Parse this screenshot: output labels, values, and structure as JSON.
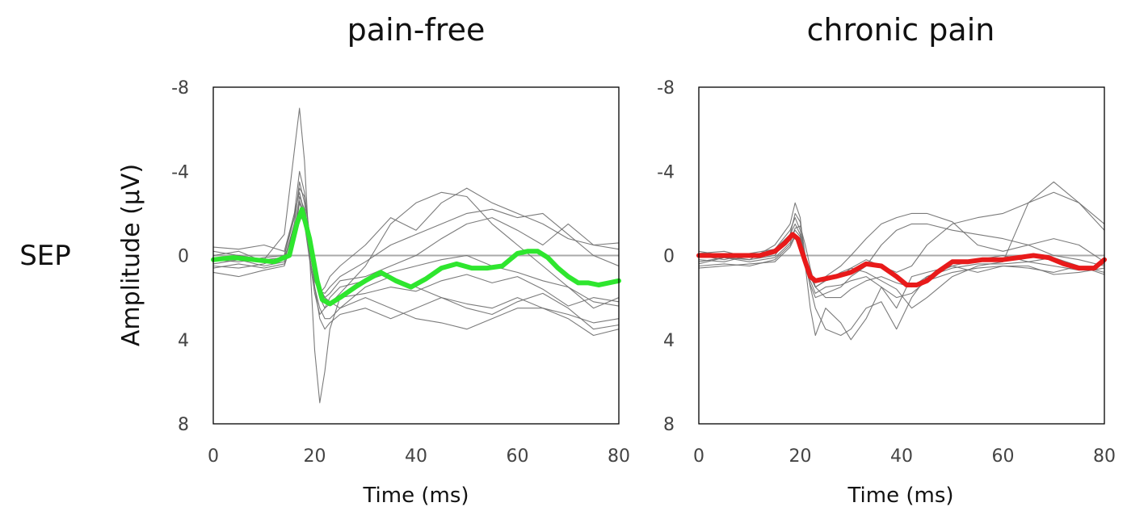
{
  "row_label": "SEP",
  "ylabel": "Amplitude (μV)",
  "chart_data": [
    {
      "type": "line",
      "title": "pain-free",
      "xlabel": "Time (ms)",
      "ylabel": "Amplitude (μV)",
      "xlim": [
        0,
        80
      ],
      "ylim": [
        -8,
        8
      ],
      "y_inverted": true,
      "xticks": [
        0,
        20,
        40,
        60,
        80
      ],
      "yticks": [
        -8,
        -4,
        0,
        4,
        8
      ],
      "zero_line": true,
      "mean_color": "#2ee62e",
      "individual_color": "#6d6d6d",
      "mean": {
        "x": [
          0,
          4,
          8,
          12,
          15,
          16.5,
          17.5,
          19,
          20.5,
          21.5,
          23,
          25,
          28,
          30,
          33,
          36,
          39,
          42,
          45,
          48,
          51,
          54,
          57,
          60,
          62,
          64,
          66,
          68,
          70,
          72,
          74,
          76,
          78,
          80
        ],
        "y": [
          0.2,
          0.1,
          0.2,
          0.3,
          0.0,
          -1.5,
          -2.2,
          -0.8,
          1.2,
          2.1,
          2.3,
          2.0,
          1.5,
          1.2,
          0.8,
          1.2,
          1.5,
          1.1,
          0.6,
          0.4,
          0.6,
          0.6,
          0.5,
          -0.1,
          -0.2,
          -0.2,
          0.1,
          0.6,
          1.0,
          1.3,
          1.3,
          1.4,
          1.3,
          1.2
        ]
      },
      "individuals": [
        {
          "x": [
            0,
            5,
            10,
            14,
            16,
            17,
            18,
            19,
            20,
            21,
            22,
            23,
            25,
            30,
            35,
            40,
            45,
            50,
            55,
            60,
            65,
            70,
            75,
            80
          ],
          "y": [
            0.3,
            0.0,
            0.2,
            -1.0,
            -5.0,
            -7.0,
            -4.5,
            0.0,
            4.5,
            7.0,
            5.5,
            3.5,
            2.0,
            1.8,
            1.5,
            1.7,
            1.2,
            0.9,
            1.3,
            1.0,
            1.6,
            2.4,
            2.0,
            2.2
          ]
        },
        {
          "x": [
            0,
            5,
            10,
            14,
            16,
            17,
            18,
            19,
            20,
            21,
            22,
            23,
            25,
            30,
            35,
            40,
            45,
            50,
            55,
            60,
            65,
            70,
            75,
            80
          ],
          "y": [
            0.5,
            0.6,
            0.4,
            0.0,
            -2.0,
            -4.0,
            -3.0,
            -1.0,
            1.5,
            3.0,
            3.5,
            3.2,
            2.8,
            2.5,
            3.0,
            2.5,
            2.0,
            2.3,
            2.5,
            2.0,
            2.5,
            3.0,
            3.8,
            3.5
          ]
        },
        {
          "x": [
            0,
            5,
            10,
            14,
            16,
            17,
            18,
            19,
            20,
            21,
            22,
            23,
            25,
            30,
            35,
            40,
            45,
            50,
            55,
            60,
            65,
            70,
            75,
            80
          ],
          "y": [
            0.0,
            -0.2,
            0.3,
            0.2,
            -1.5,
            -3.5,
            -2.5,
            -0.5,
            1.0,
            2.0,
            2.5,
            2.3,
            1.8,
            0.5,
            -1.5,
            -2.5,
            -3.0,
            -2.8,
            -1.5,
            -0.5,
            0.5,
            1.5,
            2.5,
            2.0
          ]
        },
        {
          "x": [
            0,
            5,
            10,
            14,
            16,
            17,
            18,
            19,
            20,
            21,
            22,
            23,
            25,
            30,
            35,
            40,
            45,
            50,
            55,
            60,
            65,
            70,
            75,
            80
          ],
          "y": [
            -0.4,
            -0.3,
            -0.5,
            -0.2,
            -2.0,
            -3.0,
            -2.0,
            -0.3,
            1.2,
            1.8,
            1.5,
            1.0,
            0.5,
            -0.5,
            -1.8,
            -1.2,
            -2.5,
            -3.2,
            -2.5,
            -2.0,
            -1.5,
            -0.8,
            -0.5,
            -0.6
          ]
        },
        {
          "x": [
            0,
            5,
            10,
            14,
            16,
            17,
            18,
            19,
            20,
            21,
            22,
            23,
            25,
            30,
            35,
            40,
            45,
            50,
            55,
            60,
            65,
            70,
            75,
            80
          ],
          "y": [
            0.8,
            1.0,
            0.7,
            0.5,
            -1.0,
            -2.5,
            -1.8,
            0.0,
            1.5,
            2.5,
            3.0,
            3.0,
            2.5,
            2.0,
            2.5,
            3.0,
            3.2,
            3.5,
            3.0,
            2.5,
            2.5,
            2.8,
            3.2,
            3.0
          ]
        },
        {
          "x": [
            0,
            5,
            10,
            14,
            16,
            17,
            18,
            19,
            20,
            21,
            22,
            23,
            25,
            30,
            35,
            40,
            45,
            50,
            55,
            60,
            65,
            70,
            75,
            80
          ],
          "y": [
            0.2,
            0.3,
            0.1,
            0.0,
            -1.8,
            -3.2,
            -2.8,
            -1.0,
            0.5,
            1.5,
            2.0,
            1.8,
            1.2,
            1.0,
            0.5,
            0.0,
            -0.8,
            -1.5,
            -1.8,
            -1.2,
            -0.5,
            -1.5,
            -0.5,
            -0.3
          ]
        },
        {
          "x": [
            0,
            5,
            10,
            14,
            16,
            17,
            18,
            19,
            20,
            21,
            22,
            23,
            25,
            30,
            35,
            40,
            45,
            50,
            55,
            60,
            65,
            70,
            75,
            80
          ],
          "y": [
            -0.2,
            0.0,
            0.2,
            0.1,
            -1.2,
            -2.8,
            -2.2,
            -0.6,
            0.8,
            1.6,
            2.0,
            2.2,
            2.5,
            1.5,
            1.0,
            1.5,
            2.0,
            2.5,
            2.8,
            2.2,
            1.8,
            2.5,
            3.5,
            3.3
          ]
        },
        {
          "x": [
            0,
            5,
            10,
            14,
            16,
            17,
            18,
            19,
            20,
            21,
            22,
            23,
            25,
            30,
            35,
            40,
            45,
            50,
            55,
            60,
            65,
            70,
            75,
            80
          ],
          "y": [
            0.4,
            0.2,
            0.5,
            0.3,
            -1.5,
            -2.0,
            -1.5,
            0.2,
            1.8,
            2.8,
            2.5,
            2.0,
            1.5,
            1.2,
            0.8,
            0.5,
            0.2,
            0.0,
            0.5,
            0.8,
            1.2,
            1.5,
            2.2,
            2.4
          ]
        },
        {
          "x": [
            0,
            5,
            10,
            14,
            16,
            17,
            18,
            19,
            20,
            21,
            22,
            23,
            25,
            30,
            35,
            40,
            45,
            50,
            55,
            60,
            65,
            70,
            75,
            80
          ],
          "y": [
            0.6,
            0.4,
            0.6,
            0.4,
            -0.8,
            -2.6,
            -2.0,
            -0.4,
            1.0,
            1.7,
            1.8,
            1.5,
            1.0,
            0.3,
            -0.5,
            -1.0,
            -1.5,
            -2.0,
            -2.2,
            -1.8,
            -2.0,
            -1.0,
            0.0,
            0.5
          ]
        }
      ]
    },
    {
      "type": "line",
      "title": "chronic pain",
      "xlabel": "Time (ms)",
      "ylabel": "Amplitude (μV)",
      "xlim": [
        0,
        80
      ],
      "ylim": [
        -8,
        8
      ],
      "y_inverted": true,
      "xticks": [
        0,
        20,
        40,
        60,
        80
      ],
      "yticks": [
        -8,
        -4,
        0,
        4,
        8
      ],
      "zero_line": true,
      "mean_color": "#e81a1a",
      "individual_color": "#6d6d6d",
      "mean": {
        "x": [
          0,
          4,
          8,
          12,
          15,
          17,
          18.5,
          19.5,
          21,
          22,
          23,
          25,
          27,
          30,
          33,
          36,
          39,
          41,
          43,
          45,
          47,
          50,
          53,
          56,
          60,
          63,
          66,
          69,
          72,
          75,
          78,
          80
        ],
        "y": [
          0.0,
          0.0,
          0.0,
          0.0,
          -0.2,
          -0.6,
          -1.0,
          -0.8,
          0.3,
          1.0,
          1.2,
          1.1,
          1.0,
          0.8,
          0.4,
          0.5,
          1.0,
          1.4,
          1.4,
          1.2,
          0.8,
          0.3,
          0.3,
          0.2,
          0.2,
          0.1,
          0.0,
          0.1,
          0.4,
          0.6,
          0.6,
          0.2
        ]
      },
      "individuals": [
        {
          "x": [
            0,
            5,
            10,
            15,
            18,
            19,
            20,
            21,
            22,
            23,
            25,
            28,
            30,
            33,
            36,
            39,
            42,
            45,
            50,
            55,
            60,
            65,
            70,
            75,
            80
          ],
          "y": [
            0.3,
            0.1,
            0.2,
            -0.5,
            -1.5,
            -2.5,
            -1.8,
            0.5,
            2.5,
            3.8,
            2.5,
            3.2,
            4.0,
            3.0,
            1.5,
            2.5,
            1.0,
            0.8,
            0.5,
            0.8,
            0.5,
            0.6,
            0.8,
            0.5,
            0.9
          ]
        },
        {
          "x": [
            0,
            5,
            10,
            15,
            18,
            19,
            20,
            21,
            22,
            23,
            25,
            28,
            30,
            33,
            36,
            39,
            42,
            45,
            50,
            55,
            60,
            65,
            70,
            75,
            80
          ],
          "y": [
            0.0,
            0.2,
            -0.1,
            -0.3,
            -1.2,
            -1.8,
            -1.2,
            0.2,
            1.5,
            2.5,
            3.5,
            3.8,
            3.5,
            2.5,
            2.2,
            3.5,
            2.0,
            1.0,
            0.5,
            0.2,
            0.0,
            0.3,
            0.1,
            0.5,
            0.8
          ]
        },
        {
          "x": [
            0,
            5,
            10,
            15,
            18,
            19,
            20,
            21,
            22,
            23,
            25,
            28,
            30,
            33,
            36,
            39,
            42,
            45,
            50,
            55,
            60,
            65,
            70,
            75,
            80
          ],
          "y": [
            0.5,
            0.4,
            0.5,
            0.2,
            -0.5,
            -1.0,
            -0.8,
            0.1,
            0.8,
            1.2,
            1.0,
            0.5,
            0.0,
            -0.8,
            -1.5,
            -1.8,
            -2.0,
            -2.0,
            -1.6,
            -0.5,
            -0.2,
            -0.5,
            -0.8,
            -0.5,
            0.3
          ]
        },
        {
          "x": [
            0,
            5,
            10,
            15,
            18,
            19,
            20,
            21,
            22,
            23,
            25,
            28,
            30,
            33,
            36,
            39,
            42,
            45,
            50,
            55,
            60,
            65,
            70,
            75,
            80
          ],
          "y": [
            -0.2,
            0.0,
            0.2,
            0.0,
            -1.0,
            -1.5,
            -1.0,
            0.4,
            1.0,
            1.5,
            1.2,
            1.0,
            0.6,
            0.2,
            0.5,
            0.8,
            0.5,
            -0.5,
            -1.5,
            -1.8,
            -2.0,
            -2.5,
            -3.0,
            -2.5,
            -1.2
          ]
        },
        {
          "x": [
            0,
            5,
            10,
            15,
            18,
            19,
            20,
            21,
            22,
            23,
            25,
            28,
            30,
            33,
            36,
            39,
            42,
            45,
            50,
            55,
            60,
            65,
            70,
            75,
            80
          ],
          "y": [
            0.2,
            0.3,
            0.0,
            -0.2,
            -0.8,
            -1.2,
            -0.9,
            0.3,
            1.2,
            1.8,
            1.5,
            1.4,
            1.2,
            1.0,
            1.5,
            2.0,
            1.8,
            1.2,
            0.8,
            0.6,
            0.5,
            0.5,
            0.9,
            0.8,
            0.6
          ]
        },
        {
          "x": [
            0,
            5,
            10,
            15,
            18,
            19,
            20,
            21,
            22,
            23,
            25,
            28,
            30,
            33,
            36,
            39,
            42,
            45,
            50,
            55,
            60,
            65,
            70,
            75,
            80
          ],
          "y": [
            0.4,
            0.1,
            0.3,
            0.1,
            -0.6,
            -1.3,
            -1.4,
            -0.5,
            0.6,
            1.5,
            2.0,
            2.0,
            1.6,
            1.2,
            1.0,
            1.3,
            1.5,
            1.0,
            0.6,
            0.4,
            0.4,
            0.3,
            0.5,
            0.7,
            0.4
          ]
        },
        {
          "x": [
            0,
            5,
            10,
            15,
            18,
            19,
            20,
            21,
            22,
            23,
            25,
            28,
            30,
            33,
            36,
            39,
            42,
            45,
            50,
            55,
            60,
            65,
            70,
            75,
            80
          ],
          "y": [
            -0.1,
            -0.2,
            0.1,
            -0.3,
            -1.0,
            -2.0,
            -1.6,
            0.0,
            1.0,
            1.5,
            1.2,
            0.8,
            0.6,
            0.8,
            1.2,
            1.6,
            2.5,
            2.0,
            1.0,
            0.5,
            0.3,
            -2.5,
            -3.5,
            -2.5,
            -1.5
          ]
        },
        {
          "x": [
            0,
            5,
            10,
            15,
            18,
            19,
            20,
            21,
            22,
            23,
            25,
            28,
            30,
            33,
            36,
            39,
            42,
            45,
            50,
            55,
            60,
            65,
            70,
            75,
            80
          ],
          "y": [
            0.6,
            0.5,
            0.4,
            0.3,
            -0.4,
            -0.9,
            -0.7,
            0.5,
            1.4,
            2.0,
            1.8,
            1.5,
            1.0,
            0.5,
            -0.5,
            -1.2,
            -1.5,
            -1.5,
            -1.2,
            -1.0,
            -0.8,
            -0.5,
            0.0,
            0.2,
            0.5
          ]
        }
      ]
    }
  ]
}
